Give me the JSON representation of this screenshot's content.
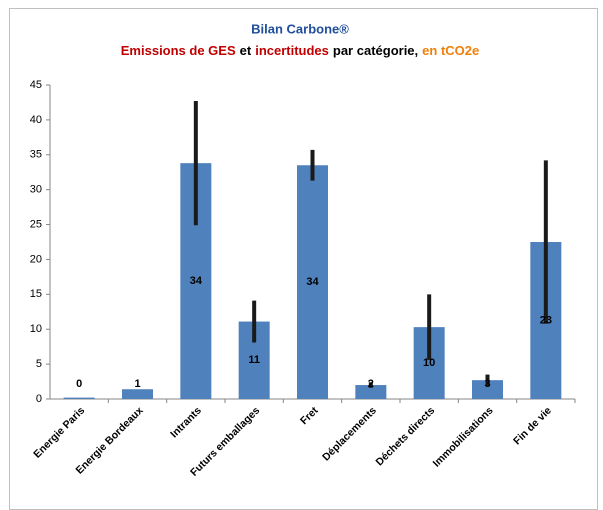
{
  "chart_data": {
    "type": "bar",
    "title": "Bilan Carbone®",
    "title_color": "#1f4e9a",
    "subtitle": [
      {
        "text": "Emissions de GES",
        "color": "#c00000"
      },
      {
        "text": "et",
        "color": "#000000"
      },
      {
        "text": "incertitudes",
        "color": "#c00000"
      },
      {
        "text": "par catégorie,",
        "color": "#000000"
      },
      {
        "text": "en tCO2e",
        "color": "#f07f09"
      }
    ],
    "categories": [
      "Energie Paris",
      "Energie Bordeaux",
      "Intrants",
      "Futurs emballages",
      "Fret",
      "Déplacements",
      "Déchets directs",
      "Immobilisations",
      "Fin de vie"
    ],
    "values": [
      0.2,
      1.4,
      33.8,
      11.1,
      33.5,
      2.0,
      10.3,
      2.7,
      22.5
    ],
    "value_labels": [
      "0",
      "1",
      "34",
      "11",
      "34",
      "2",
      "10",
      "3",
      "23"
    ],
    "errors": [
      0,
      0,
      8.9,
      3.0,
      2.2,
      0.4,
      4.7,
      0.8,
      11.7
    ],
    "color": "#4f81bd",
    "error_color": "#1a1a1a",
    "ylim": [
      0,
      45
    ],
    "yticks": [
      0,
      5,
      10,
      15,
      20,
      25,
      30,
      35,
      40,
      45
    ],
    "grid": false
  }
}
